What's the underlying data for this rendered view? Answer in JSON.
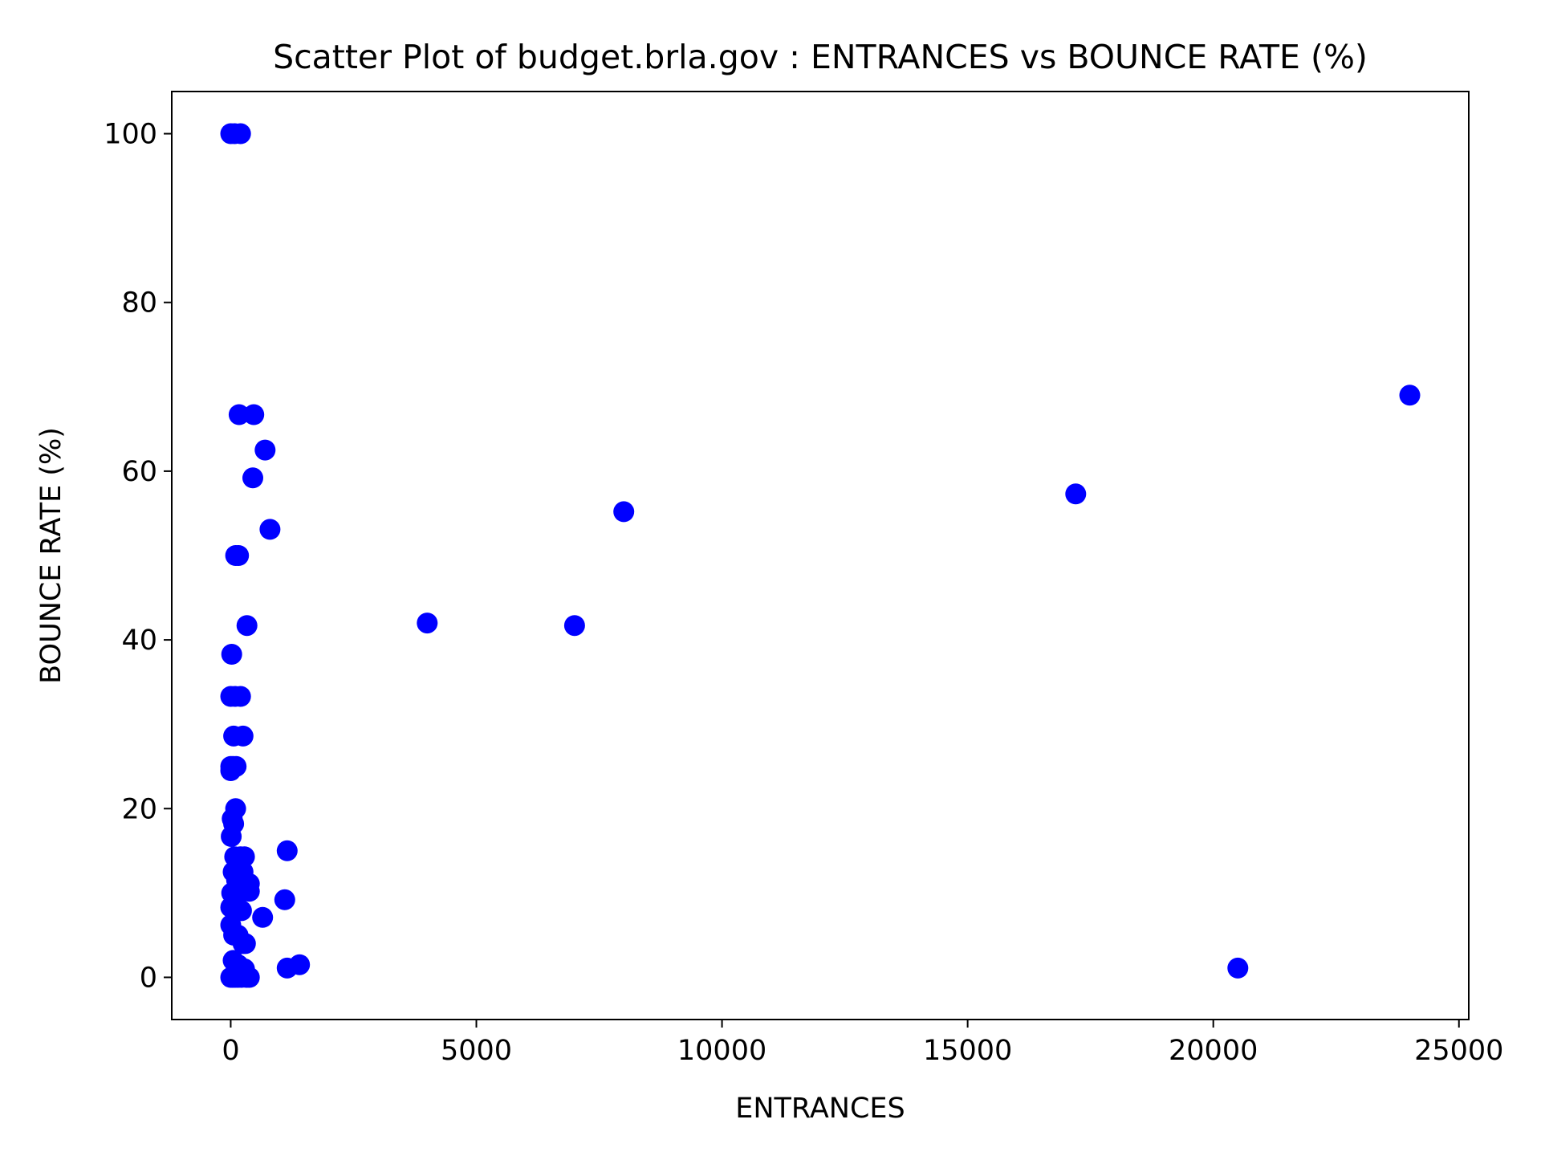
{
  "chart_data": {
    "type": "scatter",
    "title": "Scatter Plot of budget.brla.gov : ENTRANCES vs BOUNCE RATE (%)",
    "xlabel": "ENTRANCES",
    "ylabel": "BOUNCE RATE (%)",
    "xlim": [
      -1200,
      25200
    ],
    "ylim": [
      -5,
      105
    ],
    "xticks": [
      0,
      5000,
      10000,
      15000,
      20000,
      25000
    ],
    "yticks": [
      0,
      20,
      40,
      60,
      80,
      100
    ],
    "xtick_labels": [
      "0",
      "5000",
      "10000",
      "15000",
      "20000",
      "25000"
    ],
    "ytick_labels": [
      "0",
      "20",
      "40",
      "60",
      "80",
      "100"
    ],
    "grid": false,
    "legend": "none",
    "marker_color": "#0000ff",
    "points": [
      {
        "x": 0,
        "y": 100
      },
      {
        "x": 80,
        "y": 100
      },
      {
        "x": 200,
        "y": 100
      },
      {
        "x": 170,
        "y": 66.7
      },
      {
        "x": 470,
        "y": 66.7
      },
      {
        "x": 700,
        "y": 62.5
      },
      {
        "x": 450,
        "y": 59.2
      },
      {
        "x": 800,
        "y": 53.1
      },
      {
        "x": 100,
        "y": 50
      },
      {
        "x": 160,
        "y": 50
      },
      {
        "x": 330,
        "y": 41.7
      },
      {
        "x": 4000,
        "y": 42
      },
      {
        "x": 7000,
        "y": 41.7
      },
      {
        "x": 8000,
        "y": 55.2
      },
      {
        "x": 17200,
        "y": 57.3
      },
      {
        "x": 24000,
        "y": 69
      },
      {
        "x": 20500,
        "y": 1.1
      },
      {
        "x": 20,
        "y": 38.3
      },
      {
        "x": 0,
        "y": 33.3
      },
      {
        "x": 90,
        "y": 33.3
      },
      {
        "x": 200,
        "y": 33.3
      },
      {
        "x": 60,
        "y": 28.6
      },
      {
        "x": 250,
        "y": 28.6
      },
      {
        "x": 0,
        "y": 25
      },
      {
        "x": 50,
        "y": 25
      },
      {
        "x": 110,
        "y": 25
      },
      {
        "x": 0,
        "y": 24.5
      },
      {
        "x": 100,
        "y": 20
      },
      {
        "x": 30,
        "y": 18.8
      },
      {
        "x": 60,
        "y": 18.2
      },
      {
        "x": 10,
        "y": 16.7
      },
      {
        "x": 1150,
        "y": 15
      },
      {
        "x": 80,
        "y": 14.3
      },
      {
        "x": 200,
        "y": 14.3
      },
      {
        "x": 280,
        "y": 14.3
      },
      {
        "x": 150,
        "y": 13
      },
      {
        "x": 250,
        "y": 12.5
      },
      {
        "x": 50,
        "y": 12.5
      },
      {
        "x": 120,
        "y": 11.5
      },
      {
        "x": 380,
        "y": 11.1
      },
      {
        "x": 300,
        "y": 10.5
      },
      {
        "x": 20,
        "y": 10
      },
      {
        "x": 180,
        "y": 10
      },
      {
        "x": 380,
        "y": 10.2
      },
      {
        "x": 1100,
        "y": 9.2
      },
      {
        "x": 0,
        "y": 8.3
      },
      {
        "x": 140,
        "y": 8.3
      },
      {
        "x": 220,
        "y": 7.9
      },
      {
        "x": 650,
        "y": 7.1
      },
      {
        "x": 0,
        "y": 6.2
      },
      {
        "x": 60,
        "y": 5
      },
      {
        "x": 150,
        "y": 5
      },
      {
        "x": 250,
        "y": 4
      },
      {
        "x": 300,
        "y": 4
      },
      {
        "x": 50,
        "y": 2
      },
      {
        "x": 150,
        "y": 1.5
      },
      {
        "x": 1150,
        "y": 1.1
      },
      {
        "x": 1400,
        "y": 1.5
      },
      {
        "x": 280,
        "y": 1
      },
      {
        "x": 0,
        "y": 0
      },
      {
        "x": 40,
        "y": 0
      },
      {
        "x": 90,
        "y": 0
      },
      {
        "x": 150,
        "y": 0
      },
      {
        "x": 220,
        "y": 0
      },
      {
        "x": 320,
        "y": 0
      },
      {
        "x": 380,
        "y": 0
      }
    ]
  }
}
